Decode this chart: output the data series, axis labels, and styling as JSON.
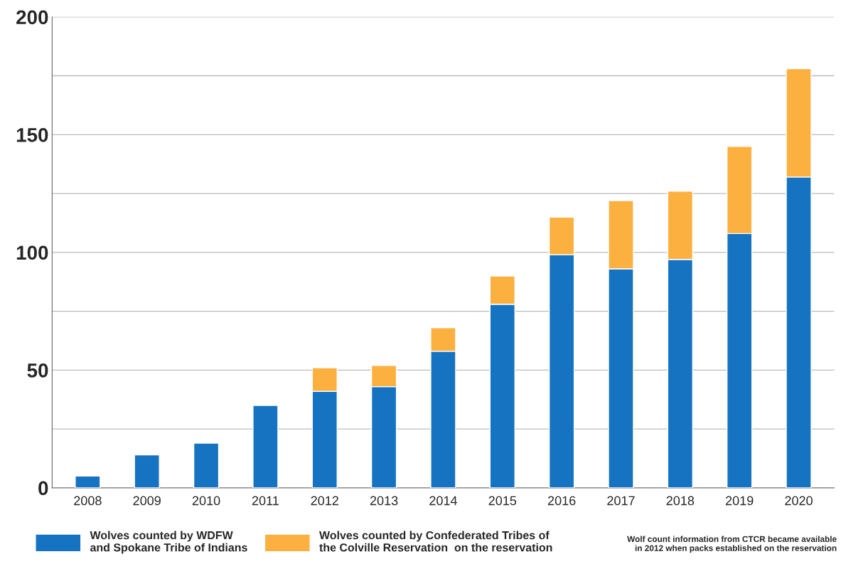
{
  "chart_data": {
    "type": "bar",
    "stacked": true,
    "categories": [
      "2008",
      "2009",
      "2010",
      "2011",
      "2012",
      "2013",
      "2014",
      "2015",
      "2016",
      "2017",
      "2018",
      "2019",
      "2020"
    ],
    "series": [
      {
        "name": "Wolves counted by WDFW\nand Spokane Tribe of Indians",
        "color": "#1673c1",
        "values": [
          5,
          14,
          19,
          35,
          41,
          43,
          58,
          78,
          99,
          93,
          97,
          108,
          132
        ]
      },
      {
        "name": "Wolves counted by Confederated Tribes of\nthe Colville Reservation  on the reservation",
        "color": "#fbb040",
        "values": [
          null,
          null,
          null,
          null,
          10,
          9,
          10,
          12,
          16,
          29,
          29,
          37,
          46
        ]
      }
    ],
    "ylim": [
      0,
      200
    ],
    "yticks": [
      0,
      {
        "value": 25,
        "label": null
      },
      50,
      {
        "value": 75,
        "label": null
      },
      100,
      {
        "value": 125,
        "label": null
      },
      150,
      {
        "value": 175,
        "label": null
      },
      200
    ],
    "grid": "y",
    "legend": "bottom",
    "annotations": [
      "Wolf count information from CTCR became available\nin 2012 when packs established on the reservation"
    ]
  }
}
